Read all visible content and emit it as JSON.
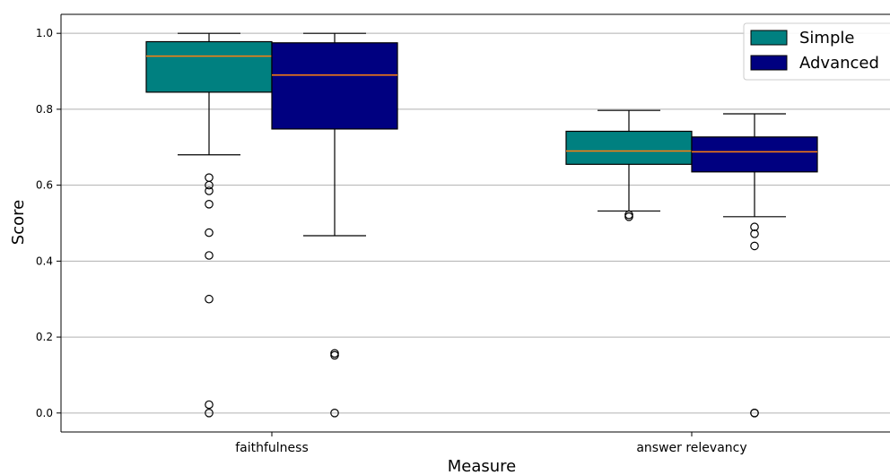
{
  "chart_data": {
    "type": "box",
    "xlabel": "Measure",
    "ylabel": "Score",
    "ylim": [
      -0.05,
      1.05
    ],
    "yticks": [
      "0.0",
      "0.2",
      "0.4",
      "0.6",
      "0.8",
      "1.0"
    ],
    "categories": [
      "faithfulness",
      "answer relevancy"
    ],
    "grid": "horizontal",
    "legend_position": "top-right",
    "series": [
      {
        "name": "Simple",
        "color": "#008080",
        "boxes": [
          {
            "whisker_low": 0.68,
            "q1": 0.845,
            "median": 0.94,
            "q3": 0.978,
            "whisker_high": 1.0,
            "outliers": [
              0.62,
              0.6,
              0.585,
              0.55,
              0.475,
              0.415,
              0.3,
              0.022,
              0.0
            ]
          },
          {
            "whisker_low": 0.532,
            "q1": 0.655,
            "median": 0.69,
            "q3": 0.742,
            "whisker_high": 0.797,
            "outliers": [
              0.522,
              0.517
            ]
          }
        ]
      },
      {
        "name": "Advanced",
        "color": "#000080",
        "boxes": [
          {
            "whisker_low": 0.467,
            "q1": 0.748,
            "median": 0.89,
            "q3": 0.975,
            "whisker_high": 1.0,
            "outliers": [
              0.157,
              0.152,
              0.0
            ]
          },
          {
            "whisker_low": 0.517,
            "q1": 0.635,
            "median": 0.688,
            "q3": 0.727,
            "whisker_high": 0.788,
            "outliers": [
              0.49,
              0.472,
              0.44,
              0.0,
              0.0
            ]
          }
        ]
      }
    ],
    "median_color": "#ff7f0e"
  }
}
